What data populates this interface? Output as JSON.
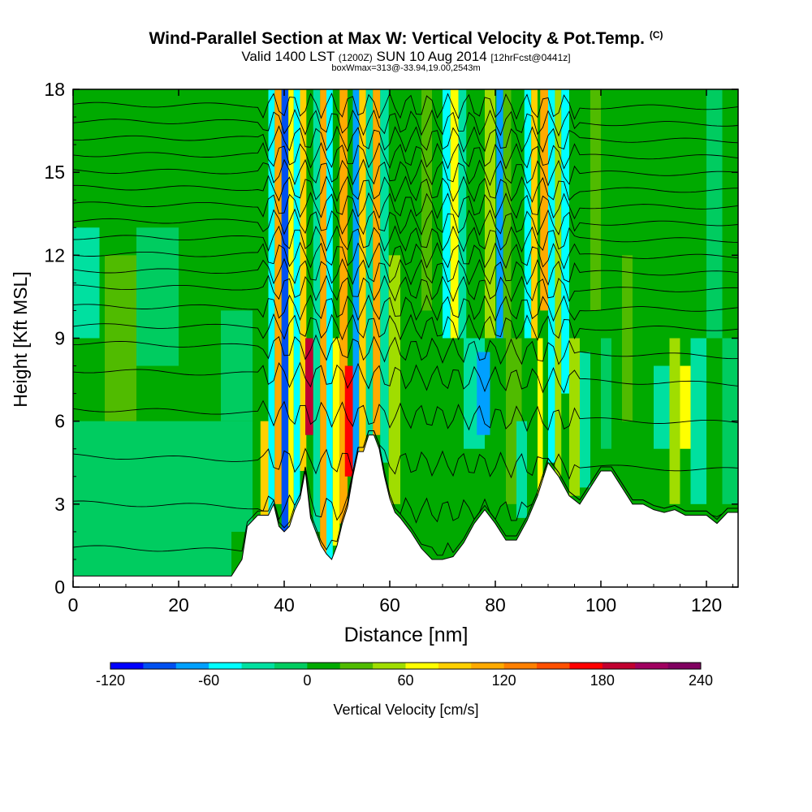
{
  "title": {
    "main": "Wind-Parallel Section at Max W: Vertical Velocity & Pot.Temp.",
    "copyright": "(C)",
    "valid_prefix": "Valid 1400 LST",
    "valid_utc": "(1200Z)",
    "valid_date": "SUN 10 Aug 2014",
    "forecast": "[12hrFcst@0441z]",
    "boxinfo": "boxWmax=313@-33.94,19.00,2543m"
  },
  "chart_data": {
    "type": "heatmap",
    "xlabel": "Distance [nm]",
    "ylabel": "Height [Kft MSL]",
    "xlim": [
      0,
      126
    ],
    "ylim": [
      0,
      18
    ],
    "xticks": [
      0,
      20,
      40,
      60,
      80,
      100,
      120
    ],
    "yticks": [
      0,
      3,
      6,
      9,
      12,
      15,
      18
    ],
    "terrain": {
      "x": [
        0,
        10,
        20,
        30,
        32,
        33,
        35,
        37,
        38,
        39,
        40,
        41,
        42,
        43,
        44,
        45,
        46,
        47,
        48,
        49,
        50,
        51,
        52,
        53,
        54,
        55,
        56,
        57,
        58,
        59,
        60,
        61,
        62,
        64,
        66,
        68,
        70,
        72,
        74,
        76,
        78,
        80,
        82,
        84,
        86,
        88,
        90,
        92,
        94,
        96,
        98,
        100,
        102,
        104,
        106,
        108,
        110,
        112,
        114,
        116,
        118,
        120,
        122,
        124,
        126
      ],
      "y": [
        0.4,
        0.4,
        0.4,
        0.4,
        1.0,
        2.2,
        2.6,
        2.6,
        3.0,
        2.2,
        2.0,
        2.2,
        2.8,
        3.2,
        4.2,
        2.5,
        2.0,
        1.5,
        1.2,
        1.0,
        1.5,
        2.3,
        2.9,
        4.0,
        4.9,
        4.9,
        5.5,
        5.5,
        5.0,
        4.0,
        3.2,
        2.7,
        2.5,
        2.0,
        1.4,
        1.0,
        1.0,
        1.1,
        1.6,
        2.3,
        2.8,
        2.3,
        1.7,
        1.7,
        2.4,
        3.3,
        4.5,
        4.0,
        3.3,
        3.0,
        3.6,
        4.2,
        4.2,
        3.6,
        3.0,
        3.0,
        2.8,
        2.7,
        2.8,
        2.6,
        2.6,
        2.6,
        2.3,
        2.7,
        2.7
      ]
    },
    "cells": [
      {
        "x": [
          0,
          126
        ],
        "y": [
          0,
          18
        ],
        "value": 0
      },
      {
        "x": [
          0,
          34
        ],
        "y": [
          2.0,
          6.0
        ],
        "value": -15
      },
      {
        "x": [
          0,
          30
        ],
        "y": [
          0.4,
          2.5
        ],
        "value": -15
      },
      {
        "x": [
          6,
          12
        ],
        "y": [
          6.0,
          12.0
        ],
        "value": 20
      },
      {
        "x": [
          12,
          20
        ],
        "y": [
          8.0,
          13.0
        ],
        "value": -15
      },
      {
        "x": [
          0,
          5
        ],
        "y": [
          9.0,
          13.0
        ],
        "value": -30
      },
      {
        "x": [
          22,
          28
        ],
        "y": [
          12.0,
          16.0
        ],
        "value": 15
      },
      {
        "x": [
          28,
          34
        ],
        "y": [
          6.0,
          10.0
        ],
        "value": -15
      },
      {
        "x": [
          35.5,
          37
        ],
        "y": [
          2.6,
          6.0
        ],
        "value": 90
      },
      {
        "x": [
          37,
          38.2
        ],
        "y": [
          2.6,
          18.0
        ],
        "value": -60
      },
      {
        "x": [
          38.2,
          39.5
        ],
        "y": [
          3.0,
          18.0
        ],
        "value": 100
      },
      {
        "x": [
          39.5,
          40.8
        ],
        "y": [
          2.0,
          18.0
        ],
        "value": -90
      },
      {
        "x": [
          40.8,
          41.8
        ],
        "y": [
          2.2,
          18.0
        ],
        "value": 70
      },
      {
        "x": [
          41.8,
          43.0
        ],
        "y": [
          2.8,
          18.0
        ],
        "value": -50
      },
      {
        "x": [
          43.0,
          44.2
        ],
        "y": [
          4.2,
          18.0
        ],
        "value": 80
      },
      {
        "x": [
          44.0,
          45.5
        ],
        "y": [
          5.5,
          9.0
        ],
        "value": 190
      },
      {
        "x": [
          45.5,
          46.8
        ],
        "y": [
          2.0,
          18.0
        ],
        "value": -40
      },
      {
        "x": [
          46.8,
          48.0
        ],
        "y": [
          1.2,
          18.0
        ],
        "value": 110
      },
      {
        "x": [
          48.0,
          49.2
        ],
        "y": [
          1.0,
          18.0
        ],
        "value": -60
      },
      {
        "x": [
          49.2,
          50.5
        ],
        "y": [
          1.5,
          9.0
        ],
        "value": 60
      },
      {
        "x": [
          50.5,
          52.0
        ],
        "y": [
          2.3,
          18.0
        ],
        "value": 100
      },
      {
        "x": [
          51.5,
          53.0
        ],
        "y": [
          4.0,
          8.0
        ],
        "value": 170
      },
      {
        "x": [
          53.0,
          54.2
        ],
        "y": [
          4.0,
          18.0
        ],
        "value": -80
      },
      {
        "x": [
          54.2,
          55.5
        ],
        "y": [
          4.9,
          18.0
        ],
        "value": 90
      },
      {
        "x": [
          55.5,
          56.8
        ],
        "y": [
          5.5,
          18.0
        ],
        "value": -40
      },
      {
        "x": [
          56.8,
          58.2
        ],
        "y": [
          5.5,
          18.0
        ],
        "value": 100
      },
      {
        "x": [
          58.2,
          59.8
        ],
        "y": [
          4.5,
          18.0
        ],
        "value": -40
      },
      {
        "x": [
          59.8,
          62
        ],
        "y": [
          3.0,
          12.0
        ],
        "value": 40
      },
      {
        "x": [
          66,
          68
        ],
        "y": [
          10.0,
          18.0
        ],
        "value": 30
      },
      {
        "x": [
          70,
          71.5
        ],
        "y": [
          9.0,
          18.0
        ],
        "value": -60
      },
      {
        "x": [
          71.5,
          73
        ],
        "y": [
          9.0,
          18.0
        ],
        "value": 70
      },
      {
        "x": [
          73,
          74.5
        ],
        "y": [
          9.0,
          18.0
        ],
        "value": -40
      },
      {
        "x": [
          74,
          78
        ],
        "y": [
          5.0,
          9.0
        ],
        "value": -30
      },
      {
        "x": [
          76.5,
          79
        ],
        "y": [
          5.5,
          8.5
        ],
        "value": -80
      },
      {
        "x": [
          78,
          80
        ],
        "y": [
          9.0,
          18.0
        ],
        "value": 40
      },
      {
        "x": [
          80.2,
          81.5
        ],
        "y": [
          9.0,
          18.0
        ],
        "value": -80
      },
      {
        "x": [
          81.5,
          83
        ],
        "y": [
          9.0,
          18.0
        ],
        "value": 30
      },
      {
        "x": [
          82,
          85
        ],
        "y": [
          3.0,
          9.0
        ],
        "value": 30
      },
      {
        "x": [
          84,
          86
        ],
        "y": [
          2.5,
          6.0
        ],
        "value": -30
      },
      {
        "x": [
          85.5,
          86.8
        ],
        "y": [
          9.0,
          18.0
        ],
        "value": -50
      },
      {
        "x": [
          86.8,
          88
        ],
        "y": [
          9.0,
          18.0
        ],
        "value": 80
      },
      {
        "x": [
          88,
          89
        ],
        "y": [
          2.5,
          9.0
        ],
        "value": 70
      },
      {
        "x": [
          88.5,
          90
        ],
        "y": [
          10.0,
          18.0
        ],
        "value": 100
      },
      {
        "x": [
          90,
          91.3
        ],
        "y": [
          4.5,
          18.0
        ],
        "value": -50
      },
      {
        "x": [
          91.3,
          92.5
        ],
        "y": [
          4.0,
          18.0
        ],
        "value": 40
      },
      {
        "x": [
          92.5,
          94
        ],
        "y": [
          7.0,
          18.0
        ],
        "value": -60
      },
      {
        "x": [
          94,
          96
        ],
        "y": [
          3.3,
          9.0
        ],
        "value": 40
      },
      {
        "x": [
          96,
          98
        ],
        "y": [
          3.6,
          8.5
        ],
        "value": -30
      },
      {
        "x": [
          98,
          100
        ],
        "y": [
          10.0,
          18.0
        ],
        "value": 30
      },
      {
        "x": [
          100,
          102
        ],
        "y": [
          5.0,
          9.0
        ],
        "value": -15
      },
      {
        "x": [
          104,
          106
        ],
        "y": [
          6.0,
          12.0
        ],
        "value": 20
      },
      {
        "x": [
          110,
          113
        ],
        "y": [
          5.0,
          8.0
        ],
        "value": -30
      },
      {
        "x": [
          113,
          115
        ],
        "y": [
          3.0,
          9.0
        ],
        "value": 40
      },
      {
        "x": [
          115,
          117
        ],
        "y": [
          5.0,
          8.0
        ],
        "value": 60
      },
      {
        "x": [
          117,
          120
        ],
        "y": [
          3.0,
          9.0
        ],
        "value": -30
      },
      {
        "x": [
          120,
          123
        ],
        "y": [
          9.0,
          18.0
        ],
        "value": -15
      },
      {
        "x": [
          123,
          126
        ],
        "y": [
          3.0,
          9.0
        ],
        "value": -15
      }
    ],
    "theta_levels_kft": [
      1.2,
      2.8,
      4.5,
      6.2,
      7.6,
      8.6,
      9.4,
      10.1,
      10.8,
      11.4,
      12.0,
      12.6,
      13.2,
      13.8,
      14.4,
      15.0,
      15.6,
      16.2,
      16.8,
      17.4
    ],
    "colorbar": {
      "label": "Vertical Velocity [cm/s]",
      "min": -120,
      "max": 240,
      "step": 20,
      "ticks": [
        -120,
        -60,
        0,
        60,
        120,
        180,
        240
      ],
      "colors": [
        "#0000ff",
        "#0050f0",
        "#00a0ff",
        "#00ffff",
        "#00e0a0",
        "#00cc60",
        "#00aa00",
        "#50bb00",
        "#a0dd00",
        "#ffff00",
        "#ffd000",
        "#ffaa00",
        "#ff8000",
        "#ff5000",
        "#ff0000",
        "#c00030",
        "#a00060",
        "#800060"
      ]
    }
  }
}
